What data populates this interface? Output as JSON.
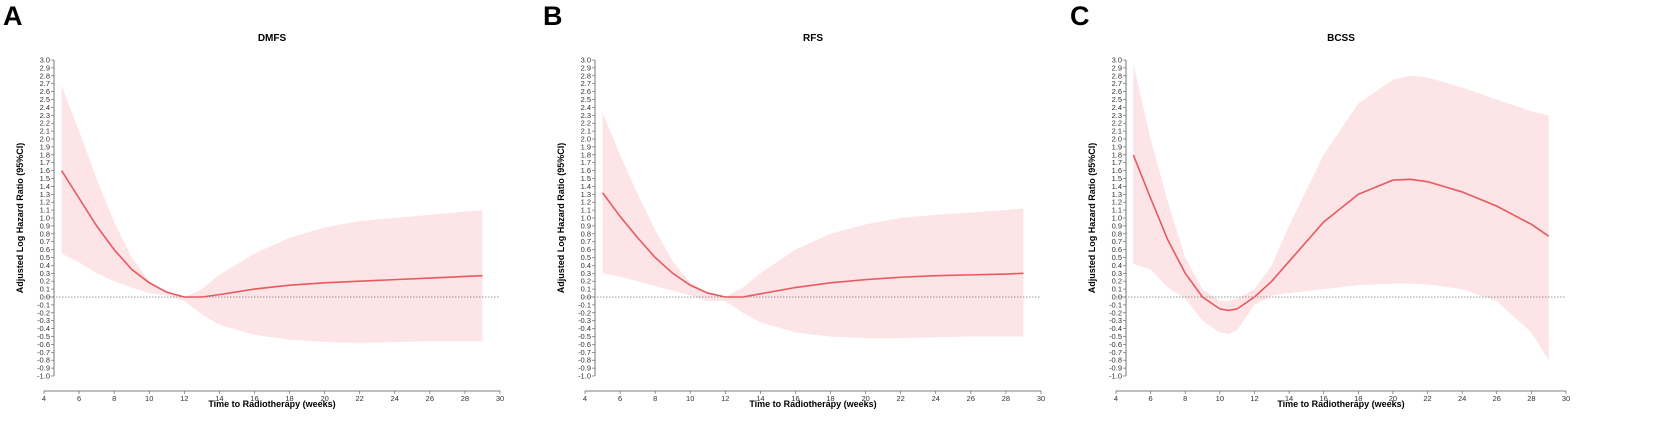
{
  "colors": {
    "line": "#e8595e",
    "band": "#fde4e6",
    "axis": "#555555",
    "refline": "#777777"
  },
  "chart_data": [
    {
      "panel": "A",
      "type": "line",
      "title": "DMFS",
      "xlabel": "Time to Radiotherapy (weeks)",
      "ylabel": "Adjusted Log Hazard Ratio (95%CI)",
      "xlim": [
        4,
        30
      ],
      "ylim": [
        -1.0,
        3.0
      ],
      "xticks": [
        "4",
        "6",
        "8",
        "10",
        "12",
        "14",
        "16",
        "18",
        "20",
        "22",
        "24",
        "26",
        "28",
        "30"
      ],
      "yticks": [
        "-1.0",
        "-0.9",
        "-0.8",
        "-0.7",
        "-0.6",
        "-0.5",
        "-0.4",
        "-0.3",
        "-0.2",
        "-0.1",
        "0.0",
        "0.1",
        "0.2",
        "0.3",
        "0.4",
        "0.5",
        "0.6",
        "0.7",
        "0.8",
        "0.9",
        "1.0",
        "1.1",
        "1.2",
        "1.3",
        "1.4",
        "1.5",
        "1.6",
        "1.7",
        "1.8",
        "1.9",
        "2.0",
        "2.1",
        "2.2",
        "2.3",
        "2.4",
        "2.5",
        "2.6",
        "2.7",
        "2.8",
        "2.9",
        "3.0"
      ],
      "reference_line": 0,
      "grid": false,
      "x": [
        5,
        6,
        7,
        8,
        9,
        10,
        11,
        12,
        13,
        14,
        16,
        18,
        20,
        22,
        24,
        26,
        28,
        29
      ],
      "estimate": [
        1.6,
        1.25,
        0.9,
        0.6,
        0.35,
        0.18,
        0.06,
        0.0,
        0.0,
        0.03,
        0.1,
        0.15,
        0.18,
        0.2,
        0.22,
        0.24,
        0.26,
        0.27
      ],
      "ci_upper": [
        2.68,
        2.1,
        1.5,
        0.95,
        0.5,
        0.2,
        0.06,
        0.0,
        0.1,
        0.28,
        0.55,
        0.75,
        0.88,
        0.96,
        1.0,
        1.04,
        1.08,
        1.1
      ],
      "ci_lower": [
        0.55,
        0.44,
        0.3,
        0.2,
        0.12,
        0.05,
        0.02,
        -0.05,
        -0.22,
        -0.35,
        -0.48,
        -0.54,
        -0.57,
        -0.58,
        -0.57,
        -0.56,
        -0.56,
        -0.56
      ]
    },
    {
      "panel": "B",
      "type": "line",
      "title": "RFS",
      "xlabel": "Time to Radiotherapy (weeks)",
      "ylabel": "Adjusted Log Hazard Ratio (95%CI)",
      "xlim": [
        4,
        30
      ],
      "ylim": [
        -1.0,
        3.0
      ],
      "xticks": [
        "4",
        "6",
        "8",
        "10",
        "12",
        "14",
        "16",
        "18",
        "20",
        "22",
        "24",
        "26",
        "28",
        "30"
      ],
      "yticks": [
        "-1.0",
        "-0.9",
        "-0.8",
        "-0.7",
        "-0.6",
        "-0.5",
        "-0.4",
        "-0.3",
        "-0.2",
        "-0.1",
        "0.0",
        "0.1",
        "0.2",
        "0.3",
        "0.4",
        "0.5",
        "0.6",
        "0.7",
        "0.8",
        "0.9",
        "1.0",
        "1.1",
        "1.2",
        "1.3",
        "1.4",
        "1.5",
        "1.6",
        "1.7",
        "1.8",
        "1.9",
        "2.0",
        "2.1",
        "2.2",
        "2.3",
        "2.4",
        "2.5",
        "2.6",
        "2.7",
        "2.8",
        "2.9",
        "3.0"
      ],
      "reference_line": 0,
      "grid": false,
      "x": [
        5,
        6,
        7,
        8,
        9,
        10,
        11,
        12,
        13,
        14,
        16,
        18,
        20,
        22,
        24,
        26,
        28,
        29
      ],
      "estimate": [
        1.32,
        1.02,
        0.75,
        0.5,
        0.3,
        0.15,
        0.05,
        0.0,
        0.0,
        0.04,
        0.12,
        0.18,
        0.22,
        0.25,
        0.27,
        0.28,
        0.29,
        0.3
      ],
      "ci_upper": [
        2.33,
        1.8,
        1.3,
        0.85,
        0.45,
        0.18,
        0.05,
        0.0,
        0.12,
        0.3,
        0.6,
        0.8,
        0.92,
        1.0,
        1.04,
        1.07,
        1.1,
        1.12
      ],
      "ci_lower": [
        0.3,
        0.26,
        0.2,
        0.14,
        0.08,
        0.02,
        -0.05,
        -0.05,
        -0.2,
        -0.32,
        -0.45,
        -0.5,
        -0.52,
        -0.52,
        -0.51,
        -0.5,
        -0.5,
        -0.5
      ]
    },
    {
      "panel": "C",
      "type": "line",
      "title": "BCSS",
      "xlabel": "Time to Radiotherapy (weeks)",
      "ylabel": "Adjusted Log Hazard Ratio (95%CI)",
      "xlim": [
        4,
        30
      ],
      "ylim": [
        -1.0,
        3.0
      ],
      "xticks": [
        "4",
        "6",
        "8",
        "10",
        "12",
        "14",
        "16",
        "18",
        "20",
        "22",
        "24",
        "26",
        "28",
        "30"
      ],
      "yticks": [
        "-1.0",
        "-0.9",
        "-0.8",
        "-0.7",
        "-0.6",
        "-0.5",
        "-0.4",
        "-0.3",
        "-0.2",
        "-0.1",
        "0.0",
        "0.1",
        "0.2",
        "0.3",
        "0.4",
        "0.5",
        "0.6",
        "0.7",
        "0.8",
        "0.9",
        "1.0",
        "1.1",
        "1.2",
        "1.3",
        "1.4",
        "1.5",
        "1.6",
        "1.7",
        "1.8",
        "1.9",
        "2.0",
        "2.1",
        "2.2",
        "2.3",
        "2.4",
        "2.5",
        "2.6",
        "2.7",
        "2.8",
        "2.9",
        "3.0"
      ],
      "reference_line": 0,
      "grid": false,
      "x": [
        5,
        6,
        7,
        8,
        9,
        10,
        10.5,
        11,
        12,
        13,
        14,
        16,
        18,
        20,
        21,
        22,
        24,
        26,
        28,
        29
      ],
      "estimate": [
        1.8,
        1.25,
        0.72,
        0.3,
        0.0,
        -0.15,
        -0.17,
        -0.15,
        0.0,
        0.2,
        0.45,
        0.95,
        1.3,
        1.48,
        1.49,
        1.46,
        1.33,
        1.15,
        0.92,
        0.77
      ],
      "ci_upper": [
        2.95,
        2.0,
        1.2,
        0.5,
        0.1,
        -0.05,
        -0.05,
        -0.02,
        0.1,
        0.4,
        0.9,
        1.8,
        2.45,
        2.75,
        2.8,
        2.78,
        2.65,
        2.5,
        2.35,
        2.3
      ],
      "ci_lower": [
        0.42,
        0.35,
        0.12,
        -0.02,
        -0.3,
        -0.45,
        -0.47,
        -0.42,
        -0.1,
        0.02,
        0.05,
        0.1,
        0.15,
        0.17,
        0.17,
        0.16,
        0.1,
        -0.05,
        -0.45,
        -0.8
      ]
    }
  ]
}
